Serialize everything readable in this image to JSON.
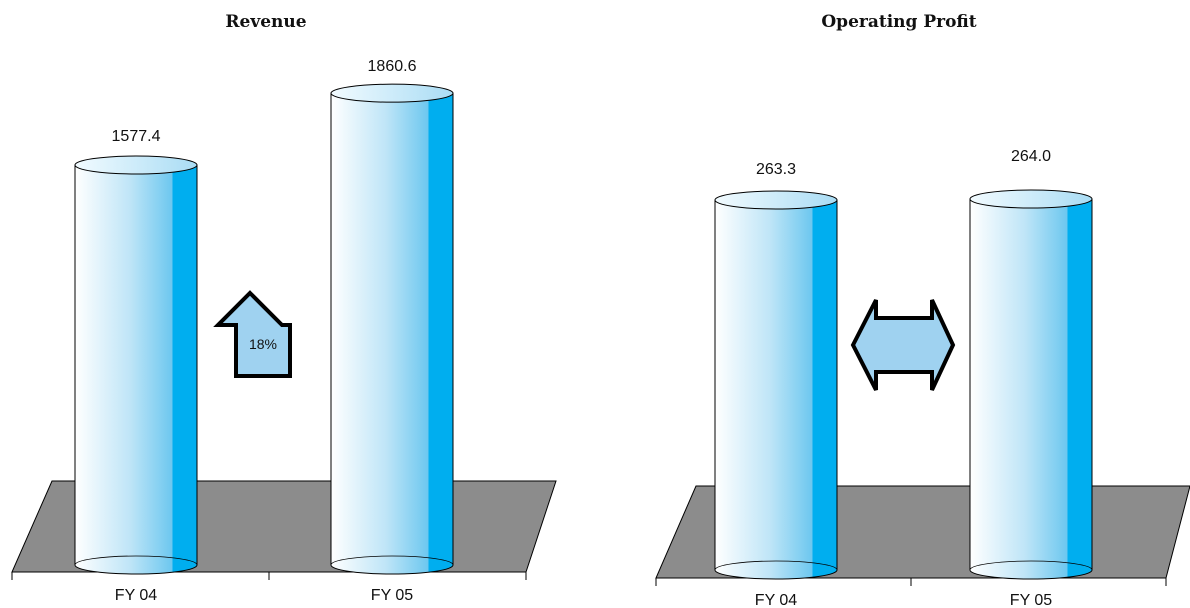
{
  "chart_data": [
    {
      "type": "bar",
      "title": "Revenue",
      "categories": [
        "FY 04",
        "FY 05"
      ],
      "values": [
        1577.4,
        1860.6
      ],
      "value_labels": [
        "1577.4",
        "1860.6"
      ],
      "annotation": {
        "shape": "up-arrow",
        "text": "18%"
      }
    },
    {
      "type": "bar",
      "title": "Operating Profit",
      "categories": [
        "FY 04",
        "FY 05"
      ],
      "values": [
        263.3,
        264.0
      ],
      "value_labels": [
        "263.3",
        "264.0"
      ],
      "annotation": {
        "shape": "double-arrow",
        "text": ""
      }
    }
  ],
  "colors": {
    "bar_light": "#ffffff",
    "bar_mid": "#9fd6f2",
    "bar_dark": "#00aeef",
    "floor": "#8c8c8c",
    "arrow_fill": "#9fd2f0"
  }
}
